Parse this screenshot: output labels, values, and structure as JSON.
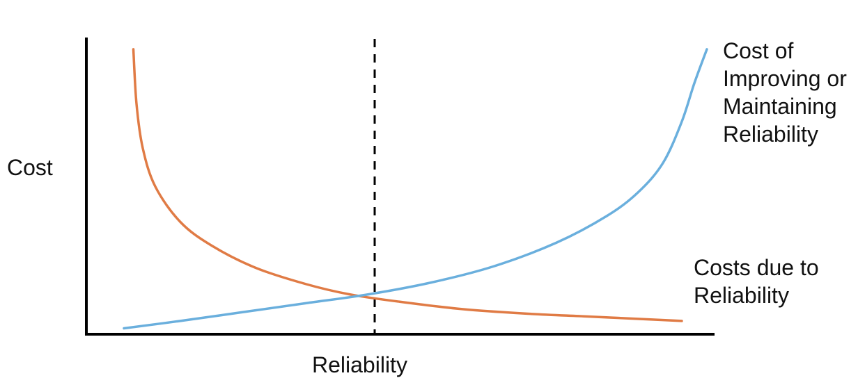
{
  "chart_data": {
    "type": "line",
    "title": "",
    "xlabel": "Reliability",
    "ylabel": "Cost",
    "xlim": [
      0,
      1
    ],
    "ylim": [
      0,
      1
    ],
    "grid": false,
    "legend": "none",
    "series": [
      {
        "name": "Costs due to Reliability",
        "label_lines": [
          "Costs due to",
          "Reliability"
        ],
        "color": "#E07B45",
        "points": [
          [
            0.075,
            0.965
          ],
          [
            0.08,
            0.78
          ],
          [
            0.09,
            0.63
          ],
          [
            0.11,
            0.5
          ],
          [
            0.15,
            0.38
          ],
          [
            0.2,
            0.3
          ],
          [
            0.27,
            0.225
          ],
          [
            0.35,
            0.17
          ],
          [
            0.42,
            0.135
          ],
          [
            0.5,
            0.11
          ],
          [
            0.6,
            0.085
          ],
          [
            0.7,
            0.07
          ],
          [
            0.8,
            0.06
          ],
          [
            0.9,
            0.05
          ],
          [
            0.95,
            0.045
          ]
        ]
      },
      {
        "name": "Cost of Improving or Maintaining Reliability",
        "label_lines": [
          "Cost of",
          "Improving or",
          "Maintaining",
          "Reliability"
        ],
        "color": "#6AAFDD",
        "points": [
          [
            0.06,
            0.02
          ],
          [
            0.15,
            0.045
          ],
          [
            0.25,
            0.075
          ],
          [
            0.35,
            0.105
          ],
          [
            0.45,
            0.135
          ],
          [
            0.55,
            0.175
          ],
          [
            0.65,
            0.23
          ],
          [
            0.75,
            0.31
          ],
          [
            0.83,
            0.4
          ],
          [
            0.88,
            0.48
          ],
          [
            0.92,
            0.58
          ],
          [
            0.95,
            0.72
          ],
          [
            0.97,
            0.85
          ],
          [
            0.99,
            0.965
          ]
        ]
      }
    ],
    "vline_x": 0.46
  }
}
